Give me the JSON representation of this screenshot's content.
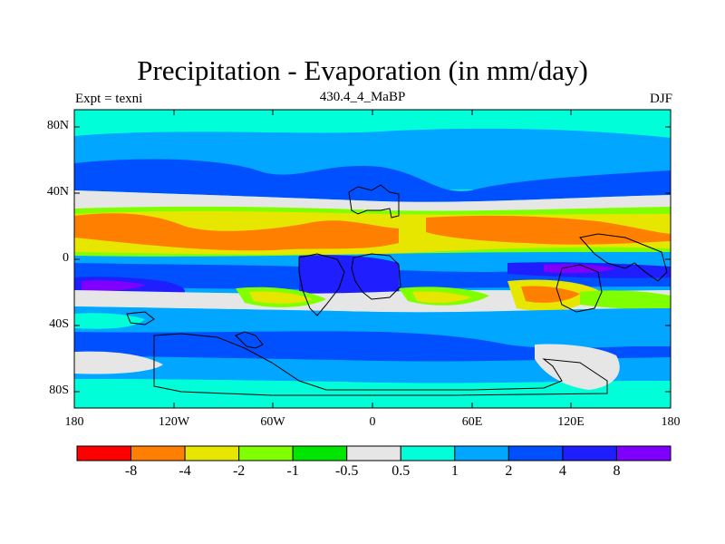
{
  "title": "Precipitation - Evaporation (in mm/day)",
  "left_string": "Expt = texni",
  "center_string": "430.4_4_MaBP",
  "right_string": "DJF",
  "y_ticks": [
    "80N",
    "40N",
    "0",
    "40S",
    "80S"
  ],
  "x_ticks": [
    "180",
    "120W",
    "60W",
    "0",
    "60E",
    "120E",
    "180"
  ],
  "colorbar": {
    "colors": [
      "#ff0000",
      "#ff8000",
      "#e6e600",
      "#80ff00",
      "#00e600",
      "#e6e6e6",
      "#00ffd9",
      "#00a6ff",
      "#0050ff",
      "#1e1eff",
      "#8000ff"
    ],
    "labels": [
      "-8",
      "-4",
      "-2",
      "-1",
      "-0.5",
      "0.5",
      "1",
      "2",
      "4",
      "8"
    ]
  }
}
